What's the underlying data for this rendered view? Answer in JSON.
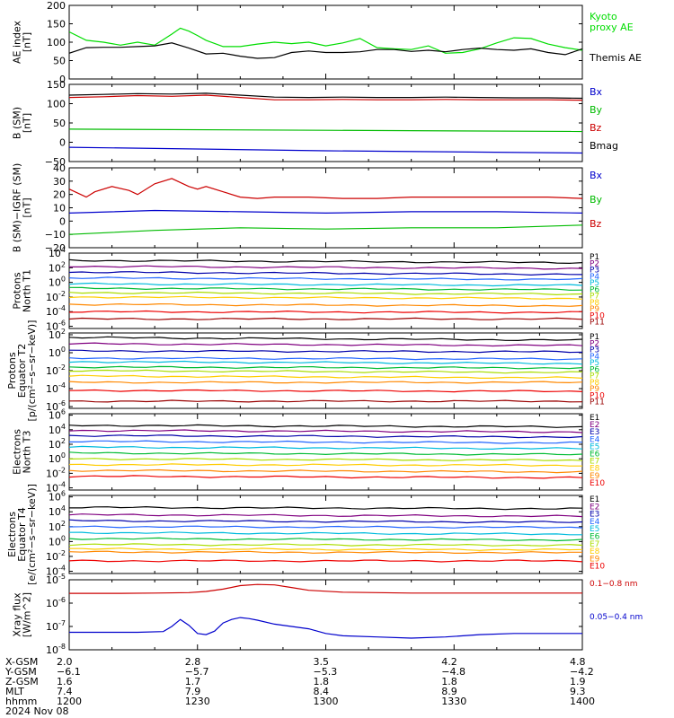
{
  "chart_data": [
    {
      "type": "line",
      "ylabel": "AE index\n[nT]",
      "ylim": [
        0,
        200
      ],
      "yticks": [
        0,
        50,
        100,
        150,
        200
      ],
      "ytick_labels": [
        "0",
        "50",
        "100",
        "150",
        "200"
      ],
      "series": [
        {
          "name": "Kyoto\nproxy AE",
          "color": "#00dd00",
          "x": [
            0,
            2,
            4,
            6,
            8,
            10,
            12,
            13,
            14,
            15,
            16,
            18,
            20,
            22,
            24,
            26,
            28,
            30,
            32,
            34,
            36,
            38,
            40,
            42,
            44,
            46,
            48,
            50,
            52,
            54,
            56,
            58,
            60
          ],
          "values": [
            128,
            105,
            100,
            92,
            100,
            92,
            122,
            138,
            130,
            118,
            105,
            88,
            88,
            95,
            100,
            96,
            100,
            90,
            98,
            110,
            85,
            82,
            80,
            90,
            70,
            72,
            82,
            98,
            112,
            110,
            95,
            85,
            78
          ]
        },
        {
          "name": "Themis AE",
          "color": "#000000",
          "x": [
            0,
            2,
            4,
            6,
            8,
            10,
            12,
            14,
            16,
            18,
            20,
            22,
            24,
            26,
            28,
            30,
            32,
            34,
            36,
            38,
            40,
            42,
            44,
            46,
            48,
            50,
            52,
            54,
            56,
            58,
            60
          ],
          "values": [
            70,
            85,
            86,
            86,
            88,
            90,
            98,
            84,
            68,
            70,
            62,
            56,
            58,
            72,
            76,
            72,
            72,
            74,
            80,
            80,
            75,
            78,
            74,
            80,
            84,
            80,
            78,
            82,
            72,
            66,
            82
          ]
        }
      ]
    },
    {
      "type": "line",
      "ylabel": "B (SM)\n[nT]",
      "ylim": [
        -50,
        150
      ],
      "yticks": [
        -50,
        0,
        50,
        100,
        150
      ],
      "ytick_labels": [
        "−50",
        "0",
        "50",
        "100",
        "150"
      ],
      "series": [
        {
          "name": "Bx",
          "color": "#0000cc",
          "x": [
            0,
            30,
            60
          ],
          "values": [
            -13,
            -22,
            -28
          ]
        },
        {
          "name": "By",
          "color": "#00bb00",
          "x": [
            0,
            30,
            60
          ],
          "values": [
            34,
            31,
            28
          ]
        },
        {
          "name": "Bz",
          "color": "#cc0000",
          "x": [
            0,
            4,
            8,
            12,
            16,
            20,
            24,
            28,
            32,
            36,
            40,
            44,
            48,
            52,
            56,
            60
          ],
          "values": [
            116,
            118,
            121,
            119,
            122,
            116,
            110,
            110,
            111,
            110,
            110,
            111,
            110,
            110,
            110,
            109
          ]
        },
        {
          "name": "Bmag",
          "color": "#000000",
          "x": [
            0,
            4,
            8,
            12,
            16,
            20,
            24,
            28,
            32,
            36,
            40,
            44,
            48,
            52,
            56,
            60
          ],
          "values": [
            122,
            124,
            126,
            125,
            127,
            122,
            117,
            116,
            117,
            116,
            116,
            117,
            116,
            115,
            115,
            114
          ]
        }
      ]
    },
    {
      "type": "line",
      "ylabel": "B (SM)−IGRF (SM)\n[nT]",
      "ylim": [
        -20,
        40
      ],
      "yticks": [
        -20,
        -10,
        0,
        10,
        20,
        30,
        40
      ],
      "ytick_labels": [
        "−20",
        "−10",
        "0",
        "10",
        "20",
        "30",
        "40"
      ],
      "series": [
        {
          "name": "Bx",
          "color": "#0000cc",
          "x": [
            0,
            10,
            20,
            30,
            40,
            50,
            60
          ],
          "values": [
            6,
            8,
            7,
            6,
            7,
            7,
            6
          ]
        },
        {
          "name": "By",
          "color": "#00bb00",
          "x": [
            0,
            10,
            20,
            30,
            40,
            50,
            60
          ],
          "values": [
            -10,
            -7,
            -5,
            -6,
            -5,
            -5,
            -3
          ]
        },
        {
          "name": "Bz",
          "color": "#cc0000",
          "x": [
            0,
            2,
            3,
            5,
            7,
            8,
            10,
            12,
            14,
            15,
            16,
            18,
            20,
            22,
            24,
            28,
            32,
            36,
            40,
            44,
            48,
            52,
            56,
            60
          ],
          "values": [
            24,
            18,
            22,
            26,
            23,
            20,
            28,
            32,
            26,
            24,
            26,
            22,
            18,
            17,
            18,
            18,
            17,
            17,
            18,
            18,
            18,
            18,
            18,
            17
          ]
        }
      ]
    },
    {
      "type": "line",
      "ylabel": "Protons\nNorth T1",
      "log": true,
      "ylim": [
        -6.3,
        4
      ],
      "yticks": [
        4,
        2,
        0,
        -2,
        -4,
        -6
      ],
      "ytick_labels": [
        "10^4",
        "10^2",
        "10^0",
        "10^-2",
        "10^-4",
        "10^-6"
      ],
      "series": [
        {
          "name": "P1",
          "color": "#000000",
          "logvalues": [
            3.0,
            2.7
          ]
        },
        {
          "name": "P2",
          "color": "#800080",
          "logvalues": [
            2.2,
            1.9
          ]
        },
        {
          "name": "P3",
          "color": "#0000aa",
          "logvalues": [
            1.4,
            1.1
          ]
        },
        {
          "name": "P4",
          "color": "#2266ff",
          "logvalues": [
            0.6,
            0.4
          ]
        },
        {
          "name": "P5",
          "color": "#00bbdd",
          "logvalues": [
            -0.2,
            -0.4
          ]
        },
        {
          "name": "P6",
          "color": "#00bb33",
          "logvalues": [
            -0.8,
            -1.0
          ]
        },
        {
          "name": "P7",
          "color": "#aadd00",
          "logvalues": [
            -1.4,
            -1.6
          ]
        },
        {
          "name": "P8",
          "color": "#ffcc00",
          "logvalues": [
            -2.0,
            -2.2
          ]
        },
        {
          "name": "P9",
          "color": "#ff8800",
          "logvalues": [
            -3.0,
            -3.2
          ]
        },
        {
          "name": "P10",
          "color": "#ee0000",
          "logvalues": [
            -4.0,
            -4.1
          ]
        },
        {
          "name": "P11",
          "color": "#990000",
          "logvalues": [
            -5.0,
            -5.0
          ]
        }
      ]
    },
    {
      "type": "line",
      "ylabel": "Protons\nEquator T2\n[p/(cm²−s−sr−keV)]",
      "log": true,
      "ylim": [
        -6.2,
        2.2
      ],
      "yticks": [
        2,
        0,
        -2,
        -4,
        -6
      ],
      "ytick_labels": [
        "10^2",
        "10^0",
        "10^-2",
        "10^-4",
        "10^-6"
      ],
      "series": [
        {
          "name": "P1",
          "color": "#000000",
          "logvalues": [
            1.7,
            1.4
          ]
        },
        {
          "name": "P2",
          "color": "#800080",
          "logvalues": [
            1.0,
            0.8
          ]
        },
        {
          "name": "P3",
          "color": "#0000aa",
          "logvalues": [
            0.2,
            0.1
          ]
        },
        {
          "name": "P4",
          "color": "#2266ff",
          "logvalues": [
            -0.6,
            -0.7
          ]
        },
        {
          "name": "P5",
          "color": "#00bbdd",
          "logvalues": [
            -1.0,
            -1.2
          ]
        },
        {
          "name": "P6",
          "color": "#00bb33",
          "logvalues": [
            -1.6,
            -1.7
          ]
        },
        {
          "name": "P7",
          "color": "#aadd00",
          "logvalues": [
            -2.0,
            -2.2
          ]
        },
        {
          "name": "P8",
          "color": "#ffcc00",
          "logvalues": [
            -2.6,
            -2.8
          ]
        },
        {
          "name": "P9",
          "color": "#ff8800",
          "logvalues": [
            -3.3,
            -3.3
          ]
        },
        {
          "name": "P10",
          "color": "#ee0000",
          "logvalues": [
            -4.2,
            -4.3
          ]
        },
        {
          "name": "P11",
          "color": "#990000",
          "logvalues": [
            -5.4,
            -5.4
          ]
        }
      ]
    },
    {
      "type": "line",
      "ylabel": "Electrons\nNorth T3",
      "log": true,
      "ylim": [
        -4.3,
        6.2
      ],
      "yticks": [
        6,
        4,
        2,
        0,
        -2,
        -4
      ],
      "ytick_labels": [
        "10^6",
        "10^4",
        "10^2",
        "10^0",
        "10^-2",
        "10^-4"
      ],
      "series": [
        {
          "name": "E1",
          "color": "#000000",
          "logvalues": [
            4.6,
            4.4
          ]
        },
        {
          "name": "E2",
          "color": "#800080",
          "logvalues": [
            3.9,
            3.7
          ]
        },
        {
          "name": "E3",
          "color": "#0000aa",
          "logvalues": [
            3.2,
            3.0
          ]
        },
        {
          "name": "E4",
          "color": "#2266ff",
          "logvalues": [
            2.4,
            2.2
          ]
        },
        {
          "name": "E5",
          "color": "#00bbdd",
          "logvalues": [
            1.6,
            1.4
          ]
        },
        {
          "name": "E6",
          "color": "#00bb33",
          "logvalues": [
            0.8,
            0.6
          ]
        },
        {
          "name": "E7",
          "color": "#aadd00",
          "logvalues": [
            0.0,
            -0.2
          ]
        },
        {
          "name": "E8",
          "color": "#ffcc00",
          "logvalues": [
            -0.8,
            -0.9
          ]
        },
        {
          "name": "E9",
          "color": "#ff8800",
          "logvalues": [
            -1.6,
            -1.8
          ]
        },
        {
          "name": "E10",
          "color": "#ee0000",
          "logvalues": [
            -2.4,
            -2.6
          ]
        }
      ]
    },
    {
      "type": "line",
      "ylabel": "Electrons\nEquator T4\n[e/(cm²−s−sr−keV)]",
      "log": true,
      "ylim": [
        -4.3,
        6.2
      ],
      "yticks": [
        6,
        4,
        2,
        0,
        -2,
        -4
      ],
      "ytick_labels": [
        "10^6",
        "10^4",
        "10^2",
        "10^0",
        "10^-2",
        "10^-4"
      ],
      "series": [
        {
          "name": "E1",
          "color": "#000000",
          "logvalues": [
            4.6,
            4.4
          ]
        },
        {
          "name": "E2",
          "color": "#800080",
          "logvalues": [
            3.6,
            3.4
          ]
        },
        {
          "name": "E3",
          "color": "#0000aa",
          "logvalues": [
            2.8,
            2.6
          ]
        },
        {
          "name": "E4",
          "color": "#2266ff",
          "logvalues": [
            2.0,
            1.9
          ]
        },
        {
          "name": "E5",
          "color": "#00bbdd",
          "logvalues": [
            1.2,
            1.0
          ]
        },
        {
          "name": "E6",
          "color": "#00bb33",
          "logvalues": [
            0.4,
            0.2
          ]
        },
        {
          "name": "E7",
          "color": "#aadd00",
          "logvalues": [
            -0.4,
            -0.5
          ]
        },
        {
          "name": "E8",
          "color": "#ffcc00",
          "logvalues": [
            -1.0,
            -1.1
          ]
        },
        {
          "name": "E9",
          "color": "#ff8800",
          "logvalues": [
            -1.4,
            -1.5
          ]
        },
        {
          "name": "E10",
          "color": "#ee0000",
          "logvalues": [
            -2.6,
            -2.6
          ]
        }
      ]
    },
    {
      "type": "line",
      "ylabel": "Xray flux\n[W/m^2]",
      "log": true,
      "ylim": [
        -8,
        -5
      ],
      "yticks": [
        -5,
        -6,
        -7,
        -8
      ],
      "ytick_labels": [
        "10^-5",
        "10^-6",
        "10^-7",
        "10^-8"
      ],
      "series": [
        {
          "name": "0.1−0.8 nm",
          "color": "#cc0000",
          "x": [
            0,
            6,
            10,
            14,
            16,
            18,
            20,
            22,
            24,
            26,
            28,
            32,
            36,
            40,
            44,
            48,
            52,
            56,
            60
          ],
          "logvalues": [
            -5.58,
            -5.58,
            -5.57,
            -5.55,
            -5.5,
            -5.4,
            -5.25,
            -5.2,
            -5.22,
            -5.33,
            -5.45,
            -5.53,
            -5.55,
            -5.57,
            -5.57,
            -5.57,
            -5.57,
            -5.57,
            -5.57
          ]
        },
        {
          "name": "0.05−0.4 nm",
          "color": "#0000cc",
          "x": [
            0,
            4,
            8,
            11,
            12,
            13,
            14,
            15,
            16,
            17,
            18,
            19,
            20,
            21,
            22,
            24,
            26,
            28,
            30,
            32,
            36,
            40,
            44,
            48,
            52,
            56,
            60
          ],
          "logvalues": [
            -7.25,
            -7.25,
            -7.25,
            -7.22,
            -7.0,
            -6.7,
            -6.95,
            -7.3,
            -7.35,
            -7.2,
            -6.85,
            -6.7,
            -6.62,
            -6.66,
            -6.73,
            -6.9,
            -7.0,
            -7.1,
            -7.3,
            -7.4,
            -7.45,
            -7.5,
            -7.45,
            -7.35,
            -7.3,
            -7.3,
            -7.3
          ]
        }
      ]
    }
  ],
  "footer": {
    "row_labels": [
      "X-GSM",
      "Y-GSM",
      "Z-GSM",
      "MLT",
      "hhmm",
      "2024 Nov 08"
    ],
    "columns": [
      {
        "values": [
          "2.0",
          "−6.1",
          "1.6",
          "7.4",
          "1200"
        ]
      },
      {
        "values": [
          "2.8",
          "−5.7",
          "1.7",
          "7.9",
          "1230"
        ]
      },
      {
        "values": [
          "3.5",
          "−5.3",
          "1.8",
          "8.4",
          "1300"
        ]
      },
      {
        "values": [
          "4.2",
          "−4.8",
          "1.8",
          "8.9",
          "1330"
        ]
      },
      {
        "values": [
          "4.8",
          "−4.2",
          "1.9",
          "9.3",
          "1400"
        ]
      }
    ]
  }
}
